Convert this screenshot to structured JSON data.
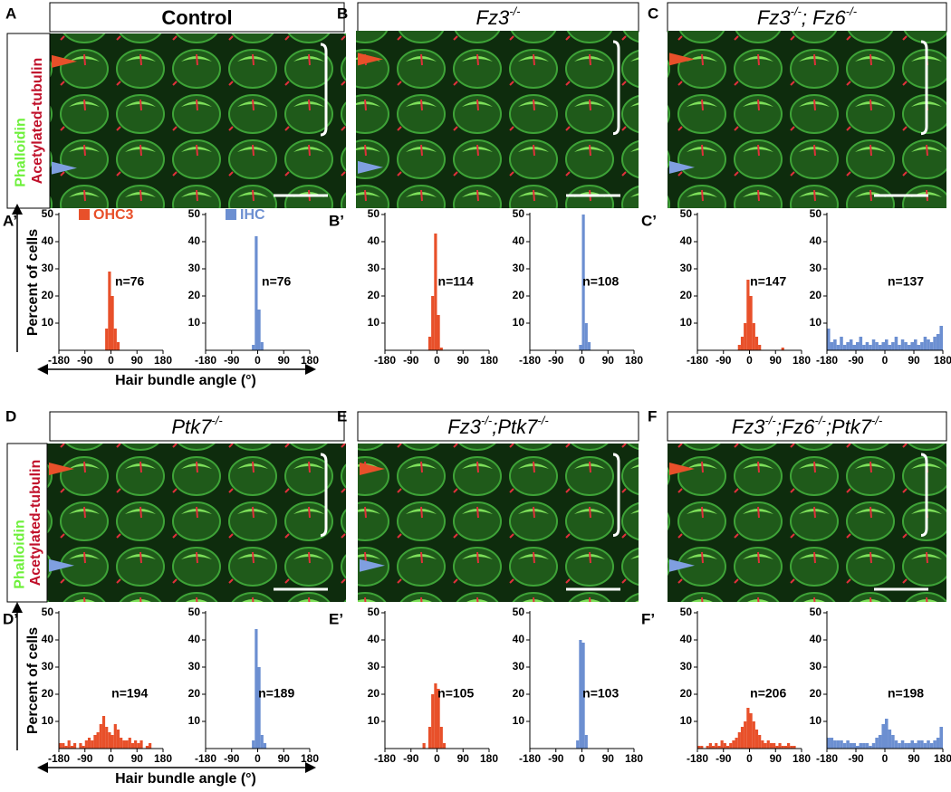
{
  "panels": [
    {
      "label": "A",
      "title": [
        "Control"
      ],
      "style": "bold",
      "stains": [
        "Phalloidin",
        "Acetylated-tubulin"
      ]
    },
    {
      "label": "B",
      "title": [
        "Fz3",
        "-/-"
      ],
      "style": "italic"
    },
    {
      "label": "C",
      "title": [
        "Fz3",
        "-/-",
        "; Fz6",
        "-/-"
      ],
      "style": "italic"
    },
    {
      "label": "D",
      "title": [
        "Ptk7",
        "-/-"
      ],
      "style": "italic",
      "stains": [
        "Phalloidin",
        "Acetylated-tubulin"
      ]
    },
    {
      "label": "E",
      "title": [
        "Fz3",
        "-/-",
        ";Ptk7",
        "-/-"
      ],
      "style": "italic"
    },
    {
      "label": "F",
      "title": [
        "Fz3",
        "-/-",
        ";Fz6",
        "-/-",
        ";Ptk7",
        "-/-"
      ],
      "style": "italic"
    }
  ],
  "chart_data": [
    {
      "type": "histogram",
      "panel": "A’",
      "legend": "OHC3",
      "ylabel": "Percent of cells",
      "xlabel": "Hair bundle angle (°)",
      "annotation": "n=76",
      "color": "#e8502a",
      "bins": [
        -180,
        -170,
        -160,
        -150,
        -140,
        -130,
        -120,
        -110,
        -100,
        -90,
        -80,
        -70,
        -60,
        -50,
        -40,
        -30,
        -20,
        -10,
        0,
        10,
        20,
        30,
        40,
        50,
        60,
        70,
        80,
        90,
        100,
        110,
        120,
        130,
        140,
        150,
        160,
        170,
        180
      ],
      "values": [
        0,
        0,
        0,
        0,
        0,
        0,
        0,
        0,
        0,
        0,
        0,
        0,
        0,
        0,
        0,
        0,
        8,
        29,
        20,
        8,
        3,
        0,
        0,
        0,
        0,
        0,
        0,
        0,
        0,
        0,
        0,
        0,
        0,
        0,
        0,
        0
      ],
      "xlim": [
        -180,
        180
      ],
      "xticks": [
        -180,
        -90,
        0,
        90,
        180
      ],
      "ylim": [
        0,
        50
      ],
      "yticks": [
        10,
        20,
        30,
        40,
        50
      ]
    },
    {
      "type": "histogram",
      "legend": "IHC",
      "annotation": "n=76",
      "color": "#6c8fd1",
      "bins": [
        -180,
        -170,
        -160,
        -150,
        -140,
        -130,
        -120,
        -110,
        -100,
        -90,
        -80,
        -70,
        -60,
        -50,
        -40,
        -30,
        -20,
        -10,
        0,
        10,
        20,
        30,
        40,
        50,
        60,
        70,
        80,
        90,
        100,
        110,
        120,
        130,
        140,
        150,
        160,
        170,
        180
      ],
      "values": [
        0,
        0,
        0,
        0,
        0,
        0,
        0,
        0,
        0,
        0,
        0,
        0,
        0,
        0,
        0,
        0,
        2,
        42,
        15,
        3,
        0,
        0,
        0,
        0,
        0,
        0,
        0,
        0,
        0,
        0,
        0,
        0,
        0,
        0,
        0,
        0
      ],
      "xlim": [
        -180,
        180
      ],
      "xticks": [
        -180,
        -90,
        0,
        90,
        180
      ],
      "ylim": [
        0,
        50
      ],
      "yticks": [
        10,
        20,
        30,
        40,
        50
      ]
    },
    {
      "type": "histogram",
      "panel": "B’",
      "annotation": "n=114",
      "color": "#e8502a",
      "bins": [
        -180,
        -170,
        -160,
        -150,
        -140,
        -130,
        -120,
        -110,
        -100,
        -90,
        -80,
        -70,
        -60,
        -50,
        -40,
        -30,
        -20,
        -10,
        0,
        10,
        20,
        30,
        40,
        50,
        60,
        70,
        80,
        90,
        100,
        110,
        120,
        130,
        140,
        150,
        160,
        170,
        180
      ],
      "values": [
        0,
        0,
        0,
        0,
        0,
        0,
        0,
        0,
        0,
        0,
        0,
        0,
        0,
        0,
        0,
        5,
        20,
        43,
        13,
        1,
        0,
        0,
        0,
        0,
        0,
        0,
        0,
        0,
        0,
        0,
        0,
        0,
        0,
        0,
        0,
        0
      ],
      "xlim": [
        -180,
        180
      ],
      "xticks": [
        -180,
        -90,
        0,
        90,
        180
      ],
      "ylim": [
        0,
        50
      ],
      "yticks": [
        10,
        20,
        30,
        40,
        50
      ]
    },
    {
      "type": "histogram",
      "annotation": "n=108",
      "color": "#6c8fd1",
      "bins": [
        -180,
        -170,
        -160,
        -150,
        -140,
        -130,
        -120,
        -110,
        -100,
        -90,
        -80,
        -70,
        -60,
        -50,
        -40,
        -30,
        -20,
        -10,
        0,
        10,
        20,
        30,
        40,
        50,
        60,
        70,
        80,
        90,
        100,
        110,
        120,
        130,
        140,
        150,
        160,
        170,
        180
      ],
      "values": [
        0,
        0,
        0,
        0,
        0,
        0,
        0,
        0,
        0,
        0,
        0,
        0,
        0,
        0,
        0,
        0,
        0,
        2,
        50,
        10,
        3,
        0,
        0,
        0,
        0,
        0,
        0,
        0,
        0,
        0,
        0,
        0,
        0,
        0,
        0,
        0
      ],
      "xlim": [
        -180,
        180
      ],
      "xticks": [
        -180,
        -90,
        0,
        90,
        180
      ],
      "ylim": [
        0,
        50
      ],
      "yticks": [
        10,
        20,
        30,
        40,
        50
      ]
    },
    {
      "type": "histogram",
      "panel": "C’",
      "annotation": "n=147",
      "color": "#e8502a",
      "bins": [
        -180,
        -170,
        -160,
        -150,
        -140,
        -130,
        -120,
        -110,
        -100,
        -90,
        -80,
        -70,
        -60,
        -50,
        -40,
        -30,
        -20,
        -10,
        0,
        10,
        20,
        30,
        40,
        50,
        60,
        70,
        80,
        90,
        100,
        110,
        120,
        130,
        140,
        150,
        160,
        170,
        180
      ],
      "values": [
        0,
        0,
        0,
        0,
        0,
        0,
        0,
        0,
        0,
        0,
        0,
        0,
        0,
        0,
        2,
        5,
        10,
        26,
        20,
        10,
        5,
        2,
        0,
        0,
        0,
        0,
        0,
        0,
        0,
        1,
        0,
        0,
        0,
        0,
        0,
        0
      ],
      "xlim": [
        -180,
        180
      ],
      "xticks": [
        -180,
        -90,
        0,
        90,
        180
      ],
      "ylim": [
        0,
        50
      ],
      "yticks": [
        10,
        20,
        30,
        40,
        50
      ]
    },
    {
      "type": "histogram",
      "annotation": "n=137",
      "color": "#6c8fd1",
      "bins": [
        -180,
        -170,
        -160,
        -150,
        -140,
        -130,
        -120,
        -110,
        -100,
        -90,
        -80,
        -70,
        -60,
        -50,
        -40,
        -30,
        -20,
        -10,
        0,
        10,
        20,
        30,
        40,
        50,
        60,
        70,
        80,
        90,
        100,
        110,
        120,
        130,
        140,
        150,
        160,
        170,
        180
      ],
      "values": [
        8,
        3,
        4,
        2,
        5,
        2,
        3,
        4,
        2,
        3,
        5,
        2,
        3,
        2,
        4,
        3,
        2,
        3,
        4,
        2,
        3,
        5,
        2,
        4,
        3,
        2,
        3,
        4,
        2,
        3,
        5,
        4,
        3,
        5,
        6,
        9
      ],
      "xlim": [
        -180,
        180
      ],
      "xticks": [
        -180,
        -90,
        0,
        90,
        180
      ],
      "ylim": [
        0,
        50
      ],
      "yticks": [
        10,
        20,
        30,
        40,
        50
      ]
    },
    {
      "type": "histogram",
      "panel": "D’",
      "ylabel": "Percent of cells",
      "xlabel": "Hair bundle angle (°)",
      "annotation": "n=194",
      "color": "#e8502a",
      "bins": [
        -180,
        -170,
        -160,
        -150,
        -140,
        -130,
        -120,
        -110,
        -100,
        -90,
        -80,
        -70,
        -60,
        -50,
        -40,
        -30,
        -20,
        -10,
        0,
        10,
        20,
        30,
        40,
        50,
        60,
        70,
        80,
        90,
        100,
        110,
        120,
        130,
        140,
        150,
        160,
        170,
        180
      ],
      "values": [
        2,
        2,
        1,
        3,
        1,
        2,
        0,
        2,
        1,
        3,
        4,
        3,
        5,
        6,
        9,
        12,
        8,
        6,
        5,
        9,
        7,
        4,
        3,
        3,
        4,
        2,
        3,
        2,
        3,
        0,
        1,
        2,
        0,
        0,
        0,
        0
      ],
      "xlim": [
        -180,
        180
      ],
      "xticks": [
        -180,
        -90,
        0,
        90,
        180
      ],
      "ylim": [
        0,
        50
      ],
      "yticks": [
        10,
        20,
        30,
        40,
        50
      ]
    },
    {
      "type": "histogram",
      "annotation": "n=189",
      "color": "#6c8fd1",
      "bins": [
        -180,
        -170,
        -160,
        -150,
        -140,
        -130,
        -120,
        -110,
        -100,
        -90,
        -80,
        -70,
        -60,
        -50,
        -40,
        -30,
        -20,
        -10,
        0,
        10,
        20,
        30,
        40,
        50,
        60,
        70,
        80,
        90,
        100,
        110,
        120,
        130,
        140,
        150,
        160,
        170,
        180
      ],
      "values": [
        0,
        0,
        0,
        0,
        0,
        0,
        0,
        0,
        0,
        0,
        0,
        0,
        0,
        0,
        0,
        0,
        3,
        44,
        30,
        5,
        2,
        0,
        0,
        0,
        0,
        0,
        0,
        0,
        0,
        0,
        0,
        0,
        0,
        0,
        0,
        0
      ],
      "xlim": [
        -180,
        180
      ],
      "xticks": [
        -180,
        -90,
        0,
        90,
        180
      ],
      "ylim": [
        0,
        50
      ],
      "yticks": [
        10,
        20,
        30,
        40,
        50
      ]
    },
    {
      "type": "histogram",
      "panel": "E’",
      "annotation": "n=105",
      "color": "#e8502a",
      "bins": [
        -180,
        -170,
        -160,
        -150,
        -140,
        -130,
        -120,
        -110,
        -100,
        -90,
        -80,
        -70,
        -60,
        -50,
        -40,
        -30,
        -20,
        -10,
        0,
        10,
        20,
        30,
        40,
        50,
        60,
        70,
        80,
        90,
        100,
        110,
        120,
        130,
        140,
        150,
        160,
        170,
        180
      ],
      "values": [
        0,
        0,
        0,
        0,
        0,
        0,
        0,
        0,
        0,
        0,
        0,
        0,
        0,
        2,
        0,
        8,
        20,
        24,
        22,
        8,
        2,
        0,
        0,
        0,
        0,
        0,
        0,
        0,
        0,
        0,
        0,
        0,
        0,
        0,
        0,
        0
      ],
      "xlim": [
        -180,
        180
      ],
      "xticks": [
        -180,
        -90,
        0,
        90,
        180
      ],
      "ylim": [
        0,
        50
      ],
      "yticks": [
        10,
        20,
        30,
        40,
        50
      ]
    },
    {
      "type": "histogram",
      "annotation": "n=103",
      "color": "#6c8fd1",
      "bins": [
        -180,
        -170,
        -160,
        -150,
        -140,
        -130,
        -120,
        -110,
        -100,
        -90,
        -80,
        -70,
        -60,
        -50,
        -40,
        -30,
        -20,
        -10,
        0,
        10,
        20,
        30,
        40,
        50,
        60,
        70,
        80,
        90,
        100,
        110,
        120,
        130,
        140,
        150,
        160,
        170,
        180
      ],
      "values": [
        0,
        0,
        0,
        0,
        0,
        0,
        0,
        0,
        0,
        0,
        0,
        0,
        0,
        0,
        0,
        0,
        3,
        40,
        39,
        5,
        0,
        0,
        0,
        0,
        0,
        0,
        0,
        0,
        0,
        0,
        0,
        0,
        0,
        0,
        0,
        0
      ],
      "xlim": [
        -180,
        180
      ],
      "xticks": [
        -180,
        -90,
        0,
        90,
        180
      ],
      "ylim": [
        0,
        50
      ],
      "yticks": [
        10,
        20,
        30,
        40,
        50
      ]
    },
    {
      "type": "histogram",
      "panel": "F’",
      "annotation": "n=206",
      "color": "#e8502a",
      "bins": [
        -180,
        -170,
        -160,
        -150,
        -140,
        -130,
        -120,
        -110,
        -100,
        -90,
        -80,
        -70,
        -60,
        -50,
        -40,
        -30,
        -20,
        -10,
        0,
        10,
        20,
        30,
        40,
        50,
        60,
        70,
        80,
        90,
        100,
        110,
        120,
        130,
        140,
        150,
        160,
        170,
        180
      ],
      "values": [
        1,
        1,
        0,
        1,
        2,
        1,
        2,
        1,
        3,
        2,
        1,
        2,
        3,
        4,
        6,
        8,
        10,
        15,
        13,
        10,
        7,
        5,
        3,
        2,
        3,
        2,
        2,
        1,
        2,
        1,
        1,
        2,
        1,
        1,
        0,
        0
      ],
      "xlim": [
        -180,
        180
      ],
      "xticks": [
        -180,
        -90,
        0,
        90,
        180
      ],
      "ylim": [
        0,
        50
      ],
      "yticks": [
        10,
        20,
        30,
        40,
        50
      ]
    },
    {
      "type": "histogram",
      "annotation": "n=198",
      "color": "#6c8fd1",
      "bins": [
        -180,
        -170,
        -160,
        -150,
        -140,
        -130,
        -120,
        -110,
        -100,
        -90,
        -80,
        -70,
        -60,
        -50,
        -40,
        -30,
        -20,
        -10,
        0,
        10,
        20,
        30,
        40,
        50,
        60,
        70,
        80,
        90,
        100,
        110,
        120,
        130,
        140,
        150,
        160,
        170,
        180
      ],
      "values": [
        4,
        4,
        3,
        3,
        3,
        2,
        3,
        2,
        2,
        1,
        2,
        2,
        2,
        1,
        2,
        4,
        5,
        9,
        11,
        7,
        5,
        3,
        2,
        3,
        2,
        2,
        3,
        2,
        3,
        3,
        2,
        3,
        2,
        3,
        4,
        8
      ],
      "xlim": [
        -180,
        180
      ],
      "xticks": [
        -180,
        -90,
        0,
        90,
        180
      ],
      "ylim": [
        0,
        50
      ],
      "yticks": [
        10,
        20,
        30,
        40,
        50
      ]
    }
  ]
}
